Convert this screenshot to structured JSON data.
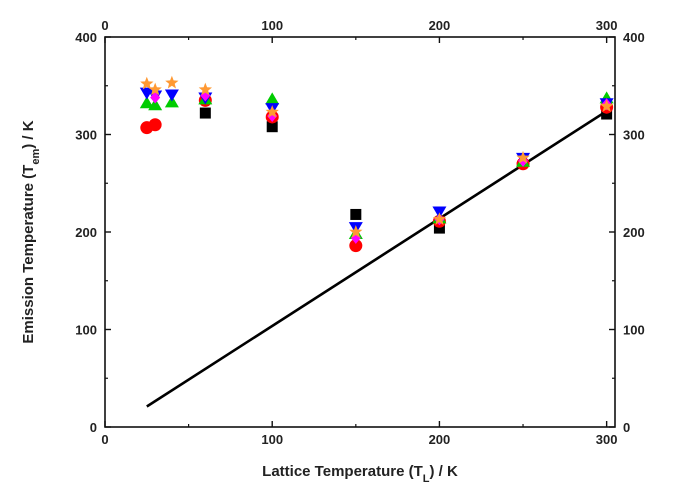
{
  "chart_data": {
    "type": "scatter",
    "xlabel": "Lattice Temperature (T_L) / K",
    "ylabel": "Emission Temperature (T_em) / K",
    "xlim": [
      0,
      305
    ],
    "ylim": [
      0,
      400
    ],
    "x_ticks": [
      "0",
      "100",
      "200",
      "300"
    ],
    "y_ticks": [
      "0",
      "100",
      "200",
      "300",
      "400"
    ],
    "grid": false,
    "legend": "none",
    "series": [
      {
        "marker": "square",
        "color": "#000000",
        "points": [
          [
            60,
            322
          ],
          [
            100,
            308
          ],
          [
            150,
            218
          ],
          [
            200,
            204
          ],
          [
            300,
            321
          ]
        ]
      },
      {
        "marker": "circle",
        "color": "#ff0000",
        "points": [
          [
            25,
            307
          ],
          [
            30,
            310
          ],
          [
            60,
            335
          ],
          [
            100,
            318
          ],
          [
            150,
            186
          ],
          [
            200,
            211
          ],
          [
            250,
            270
          ],
          [
            300,
            328
          ]
        ]
      },
      {
        "marker": "triangle-up",
        "color": "#00cc00",
        "points": [
          [
            25,
            332
          ],
          [
            30,
            330
          ],
          [
            40,
            333
          ],
          [
            60,
            336
          ],
          [
            100,
            336
          ],
          [
            150,
            198
          ],
          [
            200,
            214
          ],
          [
            250,
            272
          ],
          [
            300,
            337
          ]
        ]
      },
      {
        "marker": "triangle-down",
        "color": "#0000ff",
        "points": [
          [
            25,
            343
          ],
          [
            30,
            340
          ],
          [
            40,
            341
          ],
          [
            60,
            338
          ],
          [
            100,
            327
          ],
          [
            150,
            205
          ],
          [
            200,
            221
          ],
          [
            250,
            276
          ],
          [
            300,
            332
          ]
        ]
      },
      {
        "marker": "diamond",
        "color": "#ff00ff",
        "points": [
          [
            30,
            338
          ],
          [
            60,
            340
          ],
          [
            100,
            319
          ],
          [
            150,
            194
          ],
          [
            200,
            213
          ],
          [
            250,
            273
          ],
          [
            300,
            331
          ]
        ]
      },
      {
        "marker": "star",
        "color": "#ff9933",
        "points": [
          [
            25,
            352
          ],
          [
            30,
            346
          ],
          [
            40,
            353
          ],
          [
            60,
            346
          ],
          [
            100,
            323
          ],
          [
            150,
            200
          ],
          [
            200,
            213
          ],
          [
            250,
            276
          ],
          [
            300,
            329
          ]
        ]
      }
    ],
    "line": {
      "color": "#000000",
      "points": [
        [
          25,
          21
        ],
        [
          300,
          324
        ]
      ]
    }
  }
}
